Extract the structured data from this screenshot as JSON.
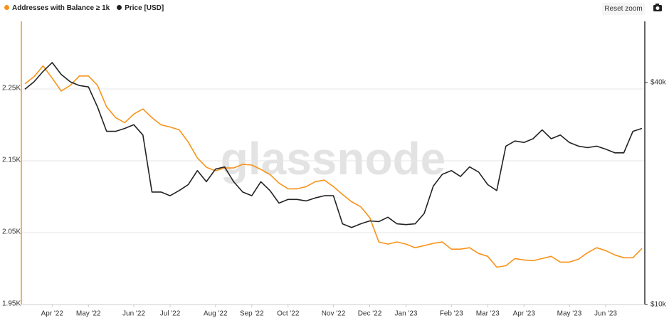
{
  "reset_zoom": "Reset zoom",
  "chart_data": {
    "type": "line",
    "watermark": "glassnode",
    "categories": [
      null,
      null,
      null,
      "Apr '22",
      null,
      null,
      null,
      "May '22",
      null,
      null,
      null,
      null,
      "Jun '22",
      null,
      null,
      null,
      "Jul '22",
      null,
      null,
      null,
      null,
      "Aug '22",
      null,
      null,
      null,
      "Sep '22",
      null,
      null,
      null,
      "Oct '22",
      null,
      null,
      null,
      null,
      "Nov '22",
      null,
      null,
      null,
      "Dec '22",
      null,
      null,
      null,
      "Jan '23",
      null,
      null,
      null,
      null,
      "Feb '23",
      null,
      null,
      null,
      "Mar '23",
      null,
      null,
      null,
      "Apr '23",
      null,
      null,
      null,
      null,
      "May '23",
      null,
      null,
      null,
      "Jun '23",
      null,
      null,
      null,
      null
    ],
    "series": [
      {
        "name": "Addresses with Balance ≥ 1k",
        "color": "#f7931a",
        "axis": "y",
        "values": [
          2257,
          2267,
          2282,
          2265,
          2247,
          2255,
          2268,
          2268,
          2255,
          2225,
          2210,
          2203,
          2215,
          2222,
          2210,
          2200,
          2197,
          2193,
          2176,
          2154,
          2141,
          2136,
          2140,
          2140,
          2145,
          2144,
          2138,
          2131,
          2119,
          2111,
          2111,
          2114,
          2121,
          2123,
          2114,
          2103,
          2093,
          2086,
          2071,
          2037,
          2034,
          2037,
          2034,
          2029,
          2032,
          2035,
          2037,
          2027,
          2027,
          2029,
          2021,
          2017,
          2002,
          2004,
          2014,
          2012,
          2011,
          2014,
          2017,
          2009,
          2009,
          2013,
          2022,
          2029,
          2025,
          2019,
          2015,
          2015,
          2028
        ]
      },
      {
        "name": "Price [USD]",
        "color": "#222222",
        "axis": "y2",
        "values": [
          39100,
          40100,
          41500,
          42700,
          41100,
          40100,
          39600,
          39400,
          36700,
          33400,
          33400,
          33800,
          34300,
          32900,
          25200,
          25200,
          24700,
          25400,
          26200,
          28100,
          26600,
          28300,
          28600,
          26600,
          25200,
          24700,
          26600,
          25400,
          23700,
          24200,
          24200,
          24000,
          24400,
          24700,
          24700,
          20900,
          20400,
          20900,
          21300,
          21200,
          21800,
          20900,
          20800,
          20900,
          22300,
          26000,
          27600,
          28100,
          27300,
          28600,
          27900,
          26200,
          25400,
          31400,
          32100,
          31900,
          32400,
          33600,
          32400,
          32900,
          31900,
          31400,
          31200,
          31400,
          31000,
          30500,
          30500,
          33400,
          33800
        ]
      }
    ],
    "ylim": [
      1950,
      2344
    ],
    "yticks": [
      {
        "value": 1950,
        "label": "1.95K"
      },
      {
        "value": 2050,
        "label": "2.05K"
      },
      {
        "value": 2150,
        "label": "2.15K"
      },
      {
        "value": 2250,
        "label": "2.25K"
      }
    ],
    "y2lim": [
      10000,
      48270
    ],
    "y2ticks": [
      {
        "value": 10000,
        "label": "$10k"
      },
      {
        "value": 40000,
        "label": "$40k"
      }
    ],
    "grid": true
  }
}
